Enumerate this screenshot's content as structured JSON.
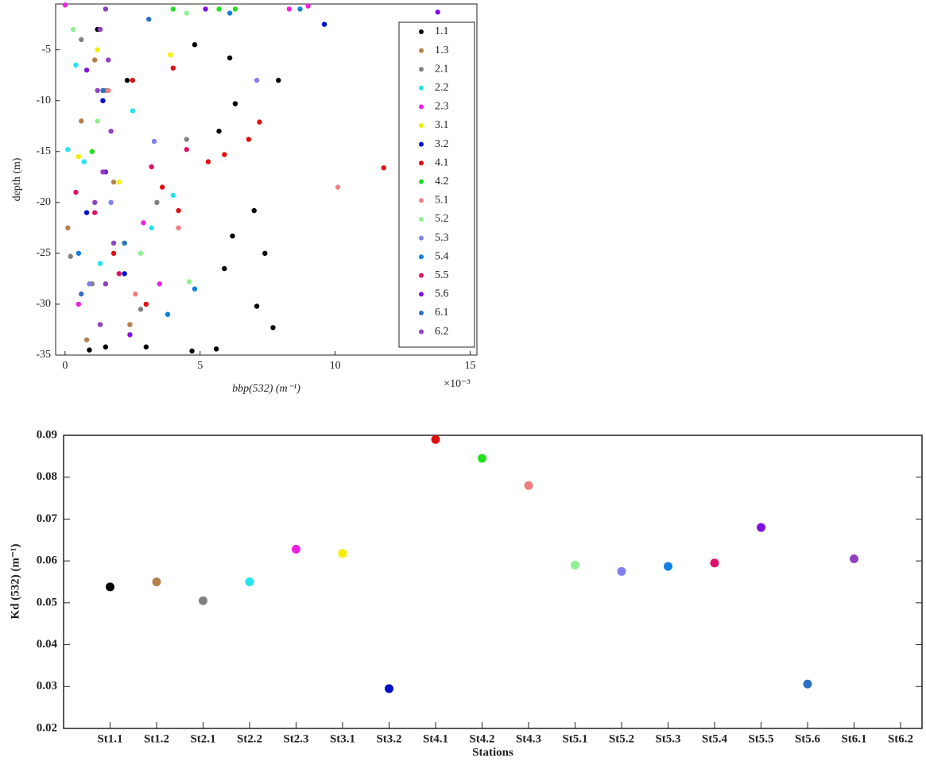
{
  "chart_data": [
    {
      "type": "scatter",
      "xlabel": "bbp(532) (m⁻¹)",
      "ylabel": "depth (m)",
      "x_exponent": "×10⁻³",
      "xlim": [
        -0.35,
        15.25
      ],
      "ylim": [
        -35,
        -0.5
      ],
      "xticks": [
        0,
        5,
        10,
        15
      ],
      "yticks": [
        -5,
        -10,
        -15,
        -20,
        -25,
        -30,
        -35
      ],
      "legend": "upper-right",
      "series": [
        {
          "name": "1.1",
          "color": "#000000",
          "x": [
            1.2,
            2.3,
            4.8,
            6.1,
            7.9,
            6.3,
            5.7,
            7.0,
            6.2,
            7.4,
            5.9,
            7.1,
            7.7,
            0.9,
            1.5,
            3.0,
            4.7,
            5.6
          ],
          "values": [
            -3,
            -8,
            -4.5,
            -5.8,
            -8,
            -10.3,
            -13,
            -20.8,
            -23.3,
            -25,
            -26.5,
            -30.2,
            -32.3,
            -34.5,
            -34.2,
            -34.2,
            -34.6,
            -34.4
          ]
        },
        {
          "name": "1.3",
          "color": "#b5804a",
          "x": [
            0.1,
            0.6,
            1.8,
            0.8,
            2.4,
            1.1
          ],
          "values": [
            -22.5,
            -12,
            -18,
            -33.5,
            -32,
            -6
          ]
        },
        {
          "name": "2.1",
          "color": "#808080",
          "x": [
            4.5,
            0.2,
            1.5,
            2.8,
            3.4,
            0.6,
            1.0
          ],
          "values": [
            -13.8,
            -25.3,
            -9,
            -30.5,
            -20,
            -4,
            -28
          ]
        },
        {
          "name": "2.2",
          "color": "#22e5f0",
          "x": [
            0.1,
            0.7,
            3.2,
            4.0,
            1.3,
            2.5,
            0.4
          ],
          "values": [
            -14.8,
            -16,
            -22.5,
            -19.3,
            -26,
            -11,
            -6.5
          ]
        },
        {
          "name": "2.3",
          "color": "#f020e0",
          "x": [
            0,
            8.3,
            9,
            1.4,
            2.9,
            3.5,
            0.5
          ],
          "values": [
            -0.6,
            -1,
            -0.7,
            -10,
            -22,
            -28,
            -30
          ]
        },
        {
          "name": "3.1",
          "color": "#f5f000",
          "x": [
            0.5,
            1.2,
            2.0,
            0.9,
            3.9
          ],
          "values": [
            -15.5,
            -5,
            -18,
            -28,
            -5.5
          ]
        },
        {
          "name": "3.2",
          "color": "#0010c8",
          "x": [
            9.6,
            1.4,
            0.8,
            2.2
          ],
          "values": [
            -2.5,
            -10,
            -21,
            -27
          ]
        },
        {
          "name": "4.1",
          "color": "#e01010",
          "x": [
            11.8,
            7.2,
            6.8,
            5.9,
            5.3,
            4.2,
            3.6,
            2.5,
            4.0,
            1.8,
            3.0
          ],
          "values": [
            -16.6,
            -12.1,
            -13.8,
            -15.3,
            -16,
            -20.8,
            -18.5,
            -8,
            -6.8,
            -25,
            -30
          ]
        },
        {
          "name": "4.2",
          "color": "#20e020",
          "x": [
            4.0,
            6.3,
            5.7,
            1.0,
            2.2
          ],
          "values": [
            -1,
            -1,
            -1,
            -15,
            -24
          ]
        },
        {
          "name": "5.1",
          "color": "#f08080",
          "x": [
            10.1,
            4.2,
            1.6,
            2.6
          ],
          "values": [
            -18.5,
            -22.5,
            -9,
            -29
          ]
        },
        {
          "name": "5.2",
          "color": "#90f090",
          "x": [
            4.6,
            1.2,
            0.3,
            2.8,
            4.5
          ],
          "values": [
            -27.8,
            -12,
            -3,
            -25,
            -1.4
          ]
        },
        {
          "name": "5.3",
          "color": "#8080f0",
          "x": [
            7.1,
            1.7,
            0.9,
            3.3
          ],
          "values": [
            -8,
            -20,
            -28,
            -14
          ]
        },
        {
          "name": "5.4",
          "color": "#1080e0",
          "x": [
            8.7,
            6.1,
            4.8,
            3.8,
            0.5
          ],
          "values": [
            -1,
            -1.4,
            -28.5,
            -31,
            -25
          ]
        },
        {
          "name": "5.5",
          "color": "#e0106a",
          "x": [
            4.5,
            3.2,
            1.1,
            2.0,
            0.4
          ],
          "values": [
            -14.8,
            -16.5,
            -21,
            -27,
            -19
          ]
        },
        {
          "name": "5.6",
          "color": "#8010e0",
          "x": [
            13.8,
            5.2,
            1.5,
            2.4,
            0.8
          ],
          "values": [
            -1.3,
            -1,
            -17,
            -33,
            -7
          ]
        },
        {
          "name": "6.1",
          "color": "#3070c0",
          "x": [
            1.4,
            2.2,
            0.6,
            3.1
          ],
          "values": [
            -9,
            -24,
            -29,
            -2
          ]
        },
        {
          "name": "6.2",
          "color": "#9040c0",
          "x": [
            1.5,
            1.3,
            1.6,
            1.2,
            1.7,
            1.4,
            1.1,
            1.8,
            1.5,
            1.3
          ],
          "values": [
            -1,
            -3,
            -6,
            -9,
            -13,
            -17,
            -20,
            -24,
            -28,
            -32
          ]
        }
      ]
    },
    {
      "type": "dot",
      "xlabel": "Stations",
      "ylabel": "Kd (532) (m⁻¹)",
      "categories": [
        "St1.1",
        "St1.2",
        "St2.1",
        "St2.2",
        "St2.3",
        "St3.1",
        "St3.2",
        "St4.1",
        "St4.2",
        "St4.3",
        "St5.1",
        "St5.2",
        "St5.3",
        "St5.4",
        "St5.5",
        "St5.6",
        "St6.1",
        "St6.2"
      ],
      "values": [
        0.0538,
        0.055,
        0.0505,
        0.055,
        0.0628,
        0.0618,
        0.0295,
        0.089,
        0.0845,
        0.078,
        0.059,
        0.0575,
        0.0587,
        0.0595,
        0.068,
        0.0306,
        0.0605,
        null
      ],
      "colors": [
        "#000000",
        "#b5804a",
        "#808080",
        "#22e5f0",
        "#f020e0",
        "#f5f000",
        "#0010c8",
        "#e01010",
        "#20e020",
        "#f08080",
        "#90f090",
        "#8080f0",
        "#1080e0",
        "#e0106a",
        "#8010e0",
        "#3070c0",
        "#9040c0",
        "#9040c0"
      ],
      "ylim": [
        0.02,
        0.09
      ],
      "yticks": [
        0.02,
        0.03,
        0.04,
        0.05,
        0.06,
        0.07,
        0.08,
        0.09
      ]
    }
  ]
}
